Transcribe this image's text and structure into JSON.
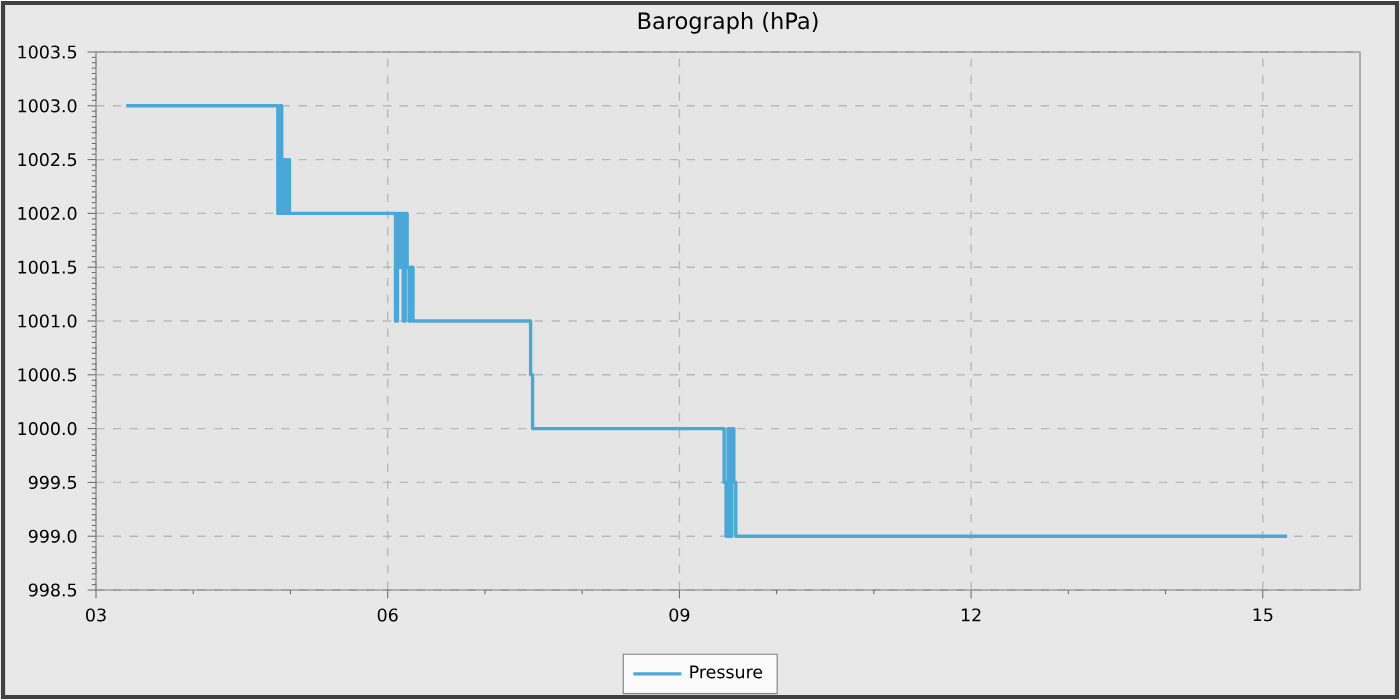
{
  "chart_data": {
    "type": "step",
    "title": "Barograph (hPa)",
    "x": [
      3.31,
      4.87,
      4.89,
      4.91,
      4.93,
      4.95,
      4.97,
      4.99,
      6.08,
      6.1,
      6.12,
      6.14,
      6.16,
      6.18,
      6.2,
      6.22,
      6.24,
      6.26,
      7.47,
      7.49,
      9.46,
      9.48,
      9.5,
      9.52,
      9.54,
      9.56,
      9.58,
      9.6,
      15.25
    ],
    "series": [
      {
        "name": "Pressure",
        "color": "#4aa8d8",
        "values": [
          1003.0,
          1002.0,
          1003.0,
          1002.0,
          1002.5,
          1002.0,
          1002.5,
          1002.0,
          1001.0,
          1002.0,
          1001.5,
          1002.0,
          1001.0,
          1002.0,
          1001.5,
          1001.0,
          1001.5,
          1001.0,
          1000.5,
          1000.0,
          999.5,
          999.0,
          1000.0,
          999.0,
          1000.0,
          999.5,
          999.0,
          999.0,
          999.0
        ]
      }
    ],
    "xlim": [
      3,
      16
    ],
    "xticks": [
      {
        "value": 3,
        "label": "03"
      },
      {
        "value": 6,
        "label": "06"
      },
      {
        "value": 9,
        "label": "09"
      },
      {
        "value": 12,
        "label": "12"
      },
      {
        "value": 15,
        "label": "15"
      }
    ],
    "ylim": [
      998.5,
      1003.5
    ],
    "yticks": [
      {
        "value": 998.5,
        "label": "998.5"
      },
      {
        "value": 999,
        "label": "999.0"
      },
      {
        "value": 999.5,
        "label": "999.5"
      },
      {
        "value": 1000,
        "label": "1000.0"
      },
      {
        "value": 1000.5,
        "label": "1000.5"
      },
      {
        "value": 1001,
        "label": "1001.0"
      },
      {
        "value": 1001.5,
        "label": "1001.5"
      },
      {
        "value": 1002,
        "label": "1002.0"
      },
      {
        "value": 1002.5,
        "label": "1002.5"
      },
      {
        "value": 1003,
        "label": "1003.0"
      },
      {
        "value": 1003.5,
        "label": "1003.5"
      }
    ],
    "grid": true,
    "legend": "bottom",
    "line_style": "solid",
    "marker": "none"
  }
}
